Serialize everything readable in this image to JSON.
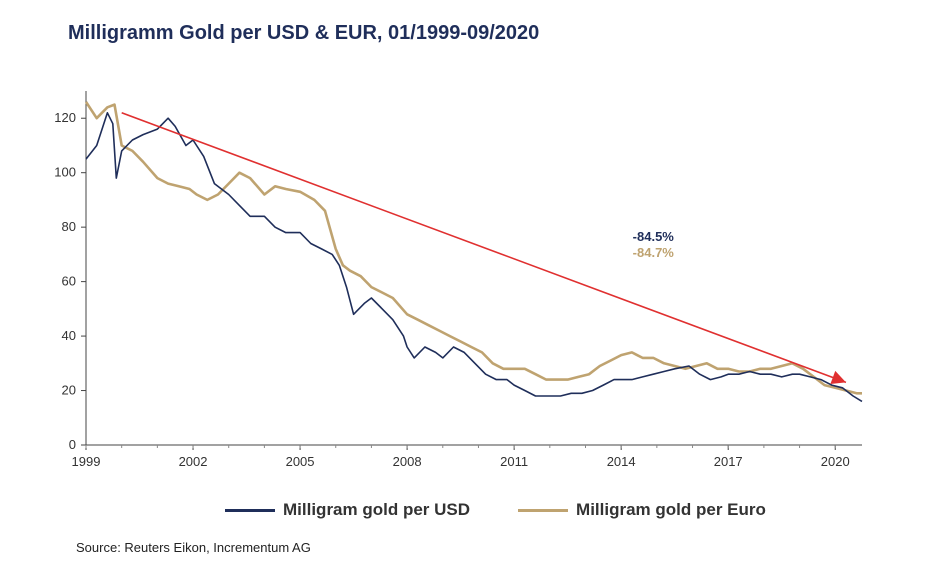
{
  "chart_data": {
    "type": "line",
    "title": "Milligramm Gold per USD & EUR, 01/1999-09/2020",
    "xlabel": "",
    "ylabel": "",
    "xlim": [
      1999,
      2020.75
    ],
    "ylim": [
      0,
      130
    ],
    "x_ticks": [
      "1999",
      "2002",
      "2005",
      "2008",
      "2011",
      "2014",
      "2017",
      "2020"
    ],
    "y_ticks": [
      "0",
      "20",
      "40",
      "60",
      "80",
      "100",
      "120"
    ],
    "grid": false,
    "legend_position": "bottom",
    "series": [
      {
        "name": "Milligram gold per USD",
        "color": "#1f2e5a",
        "x": [
          1999.0,
          1999.3,
          1999.6,
          1999.75,
          1999.85,
          2000.0,
          2000.3,
          2000.6,
          2001.0,
          2001.3,
          2001.5,
          2001.8,
          2002.0,
          2002.3,
          2002.6,
          2003.0,
          2003.3,
          2003.6,
          2004.0,
          2004.3,
          2004.6,
          2005.0,
          2005.3,
          2005.6,
          2005.9,
          2006.1,
          2006.3,
          2006.5,
          2006.8,
          2007.0,
          2007.3,
          2007.6,
          2007.9,
          2008.0,
          2008.2,
          2008.5,
          2008.8,
          2009.0,
          2009.3,
          2009.6,
          2009.9,
          2010.2,
          2010.5,
          2010.8,
          2011.0,
          2011.3,
          2011.6,
          2011.8,
          2012.0,
          2012.3,
          2012.6,
          2012.9,
          2013.2,
          2013.5,
          2013.8,
          2014.0,
          2014.3,
          2014.6,
          2014.9,
          2015.2,
          2015.5,
          2015.9,
          2016.2,
          2016.5,
          2016.8,
          2017.0,
          2017.3,
          2017.6,
          2017.9,
          2018.2,
          2018.5,
          2018.8,
          2019.0,
          2019.3,
          2019.6,
          2019.9,
          2020.2,
          2020.5,
          2020.75
        ],
        "values": [
          105,
          110,
          122,
          118,
          98,
          108,
          112,
          114,
          116,
          120,
          117,
          110,
          112,
          106,
          96,
          92,
          88,
          84,
          84,
          80,
          78,
          78,
          74,
          72,
          70,
          66,
          58,
          48,
          52,
          54,
          50,
          46,
          40,
          36,
          32,
          36,
          34,
          32,
          36,
          34,
          30,
          26,
          24,
          24,
          22,
          20,
          18,
          18,
          18,
          18,
          19,
          19,
          20,
          22,
          24,
          24,
          24,
          25,
          26,
          27,
          28,
          29,
          26,
          24,
          25,
          26,
          26,
          27,
          26,
          26,
          25,
          26,
          26,
          25,
          24,
          22,
          21,
          18,
          16
        ]
      },
      {
        "name": "Milligram gold per Euro",
        "color": "#bfa370",
        "x": [
          1999.0,
          1999.3,
          1999.6,
          1999.8,
          2000.0,
          2000.3,
          2000.6,
          2001.0,
          2001.3,
          2001.6,
          2001.9,
          2002.1,
          2002.4,
          2002.7,
          2003.0,
          2003.3,
          2003.6,
          2004.0,
          2004.3,
          2004.6,
          2005.0,
          2005.4,
          2005.7,
          2006.0,
          2006.2,
          2006.4,
          2006.7,
          2007.0,
          2007.3,
          2007.6,
          2008.0,
          2008.3,
          2008.6,
          2008.9,
          2009.2,
          2009.5,
          2009.8,
          2010.1,
          2010.4,
          2010.7,
          2011.0,
          2011.3,
          2011.6,
          2011.9,
          2012.2,
          2012.5,
          2012.8,
          2013.1,
          2013.4,
          2013.7,
          2014.0,
          2014.3,
          2014.6,
          2014.9,
          2015.2,
          2015.5,
          2015.8,
          2016.1,
          2016.4,
          2016.7,
          2017.0,
          2017.3,
          2017.6,
          2017.9,
          2018.2,
          2018.5,
          2018.8,
          2019.1,
          2019.4,
          2019.7,
          2020.0,
          2020.3,
          2020.6,
          2020.75
        ],
        "values": [
          126,
          120,
          124,
          125,
          110,
          108,
          104,
          98,
          96,
          95,
          94,
          92,
          90,
          92,
          96,
          100,
          98,
          92,
          95,
          94,
          93,
          90,
          86,
          72,
          66,
          64,
          62,
          58,
          56,
          54,
          48,
          46,
          44,
          42,
          40,
          38,
          36,
          34,
          30,
          28,
          28,
          28,
          26,
          24,
          24,
          24,
          25,
          26,
          29,
          31,
          33,
          34,
          32,
          32,
          30,
          29,
          28,
          29,
          30,
          28,
          28,
          27,
          27,
          28,
          28,
          29,
          30,
          28,
          25,
          22,
          21,
          20,
          19,
          19
        ]
      }
    ],
    "annotations": [
      {
        "text": "-84.5%",
        "x": 2014.9,
        "y": 75,
        "color": "#1f2e5a"
      },
      {
        "text": "-84.7%",
        "x": 2014.9,
        "y": 69,
        "color": "#bfa370"
      }
    ],
    "trend_arrow": {
      "x1": 2000.0,
      "y1": 122,
      "x2": 2020.3,
      "y2": 23,
      "color": "#e03030"
    }
  },
  "footer": {
    "source": "Source: Reuters Eikon, Incrementum AG"
  }
}
